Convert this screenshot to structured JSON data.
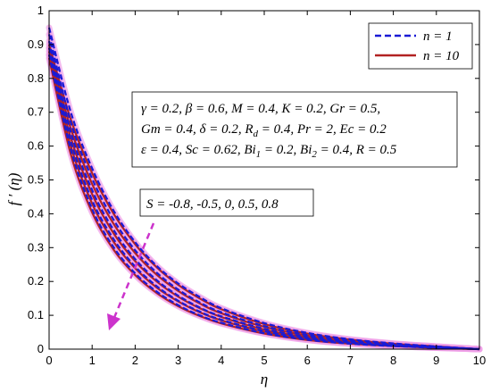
{
  "chart_data": {
    "type": "line",
    "xlabel": "η",
    "ylabel": "f ′ (η)",
    "xlim": [
      0,
      10
    ],
    "ylim": [
      0,
      1
    ],
    "xticks": [
      "0",
      "1",
      "2",
      "3",
      "4",
      "5",
      "6",
      "7",
      "8",
      "9",
      "10"
    ],
    "yticks": [
      "0",
      "0.1",
      "0.2",
      "0.3",
      "0.4",
      "0.5",
      "0.6",
      "0.7",
      "0.8",
      "0.9",
      "1"
    ],
    "grid": false,
    "legend_position": "top-right",
    "legend": [
      {
        "label": "n = 1",
        "color": "#1a1ad6",
        "style": "dashed"
      },
      {
        "label": "n = 10",
        "color": "#b22222",
        "style": "solid"
      }
    ],
    "parameter_text": [
      "γ = 0.2, β = 0.6, M = 0.4, K = 0.2, Gr = 0.5,",
      "Gm = 0.4, δ = 0.2, R",
      "d",
      " = 0.4, Pr = 2, Ec = 0.2",
      "ε = 0.4, Sc = 0.62, Bi",
      "1",
      " = 0.2, Bi",
      "2",
      " = 0.4, R = 0.5"
    ],
    "annotation": "S = -0.8, -0.5, 0, 0.5, 0.8",
    "series": [
      {
        "group": "n = 1",
        "S": -0.8,
        "x": [
          0,
          0.5,
          1,
          1.5,
          2,
          2.5,
          3,
          3.5,
          4,
          5,
          6,
          7,
          8,
          9,
          10
        ],
        "y": [
          0.95,
          0.702,
          0.534,
          0.409,
          0.316,
          0.246,
          0.194,
          0.154,
          0.121,
          0.077,
          0.048,
          0.029,
          0.017,
          0.008,
          0.0
        ]
      },
      {
        "group": "n = 1",
        "S": -0.5,
        "x": [
          0,
          0.5,
          1,
          1.5,
          2,
          2.5,
          3,
          3.5,
          4,
          5,
          6,
          7,
          8,
          9,
          10
        ],
        "y": [
          0.93,
          0.672,
          0.504,
          0.382,
          0.292,
          0.226,
          0.176,
          0.138,
          0.109,
          0.068,
          0.042,
          0.025,
          0.014,
          0.007,
          0.0
        ]
      },
      {
        "group": "n = 1",
        "S": 0,
        "x": [
          0,
          0.5,
          1,
          1.5,
          2,
          2.5,
          3,
          3.5,
          4,
          5,
          6,
          7,
          8,
          9,
          10
        ],
        "y": [
          0.91,
          0.643,
          0.47,
          0.352,
          0.266,
          0.204,
          0.158,
          0.123,
          0.097,
          0.06,
          0.036,
          0.021,
          0.012,
          0.006,
          0.0
        ]
      },
      {
        "group": "n = 1",
        "S": 0.5,
        "x": [
          0,
          0.5,
          1,
          1.5,
          2,
          2.5,
          3,
          3.5,
          4,
          5,
          6,
          7,
          8,
          9,
          10
        ],
        "y": [
          0.89,
          0.617,
          0.44,
          0.325,
          0.244,
          0.186,
          0.143,
          0.111,
          0.087,
          0.053,
          0.032,
          0.019,
          0.01,
          0.005,
          0.0
        ]
      },
      {
        "group": "n = 1",
        "S": 0.8,
        "x": [
          0,
          0.5,
          1,
          1.5,
          2,
          2.5,
          3,
          3.5,
          4,
          5,
          6,
          7,
          8,
          9,
          10
        ],
        "y": [
          0.87,
          0.592,
          0.414,
          0.301,
          0.224,
          0.17,
          0.13,
          0.1,
          0.078,
          0.047,
          0.028,
          0.016,
          0.009,
          0.004,
          0.0
        ]
      },
      {
        "group": "n = 10",
        "S": -0.8,
        "x": [
          0,
          0.5,
          1,
          1.5,
          2,
          2.5,
          3,
          3.5,
          4,
          5,
          6,
          7,
          8,
          9,
          10
        ],
        "y": [
          0.9,
          0.68,
          0.52,
          0.4,
          0.31,
          0.242,
          0.19,
          0.15,
          0.118,
          0.074,
          0.046,
          0.028,
          0.016,
          0.008,
          0.0
        ]
      },
      {
        "group": "n = 10",
        "S": -0.5,
        "x": [
          0,
          0.5,
          1,
          1.5,
          2,
          2.5,
          3,
          3.5,
          4,
          5,
          6,
          7,
          8,
          9,
          10
        ],
        "y": [
          0.89,
          0.653,
          0.488,
          0.37,
          0.284,
          0.22,
          0.172,
          0.135,
          0.106,
          0.066,
          0.04,
          0.024,
          0.014,
          0.007,
          0.0
        ]
      },
      {
        "group": "n = 10",
        "S": 0,
        "x": [
          0,
          0.5,
          1,
          1.5,
          2,
          2.5,
          3,
          3.5,
          4,
          5,
          6,
          7,
          8,
          9,
          10
        ],
        "y": [
          0.88,
          0.626,
          0.458,
          0.342,
          0.26,
          0.2,
          0.155,
          0.121,
          0.095,
          0.058,
          0.035,
          0.021,
          0.012,
          0.006,
          0.0
        ]
      },
      {
        "group": "n = 10",
        "S": 0.5,
        "x": [
          0,
          0.5,
          1,
          1.5,
          2,
          2.5,
          3,
          3.5,
          4,
          5,
          6,
          7,
          8,
          9,
          10
        ],
        "y": [
          0.87,
          0.601,
          0.43,
          0.317,
          0.239,
          0.182,
          0.141,
          0.109,
          0.085,
          0.052,
          0.031,
          0.018,
          0.01,
          0.005,
          0.0
        ]
      },
      {
        "group": "n = 10",
        "S": 0.8,
        "x": [
          0,
          0.5,
          1,
          1.5,
          2,
          2.5,
          3,
          3.5,
          4,
          5,
          6,
          7,
          8,
          9,
          10
        ],
        "y": [
          0.86,
          0.578,
          0.404,
          0.294,
          0.219,
          0.166,
          0.127,
          0.098,
          0.076,
          0.046,
          0.027,
          0.016,
          0.009,
          0.004,
          0.0
        ]
      }
    ],
    "colors": {
      "n1": "#1a1ad6",
      "n10": "#b22222",
      "arrow": "#cc33cc",
      "halo": "#f0a0e8"
    }
  }
}
